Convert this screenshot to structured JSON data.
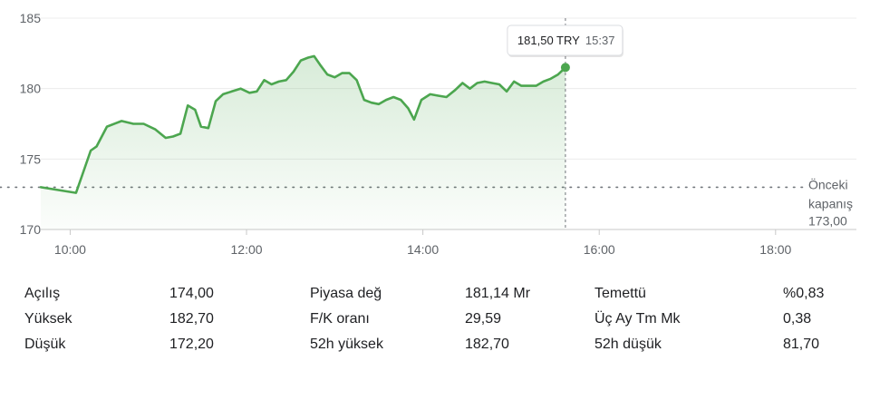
{
  "chart_data": {
    "type": "area",
    "currency": "TRY",
    "tooltip": {
      "price": "181,50 TRY",
      "time": "15:37"
    },
    "previous_close": {
      "label_line1": "Önceki",
      "label_line2": "kapanış",
      "value_label": "173,00",
      "value": 173.0
    },
    "y_ticks": [
      "185",
      "180",
      "175",
      "170"
    ],
    "x_ticks": [
      "10:00",
      "12:00",
      "14:00",
      "16:00",
      "18:00"
    ],
    "ylim": [
      170,
      185
    ],
    "xlim": [
      "09:40",
      "18:55"
    ],
    "line_color": "#4ca64f",
    "series": [
      {
        "x": "09:40",
        "y": 173.0
      },
      {
        "x": "10:04",
        "y": 172.6
      },
      {
        "x": "10:08",
        "y": 173.8
      },
      {
        "x": "10:14",
        "y": 175.6
      },
      {
        "x": "10:18",
        "y": 175.9
      },
      {
        "x": "10:25",
        "y": 177.3
      },
      {
        "x": "10:35",
        "y": 177.7
      },
      {
        "x": "10:43",
        "y": 177.5
      },
      {
        "x": "10:50",
        "y": 177.5
      },
      {
        "x": "10:58",
        "y": 177.1
      },
      {
        "x": "11:05",
        "y": 176.5
      },
      {
        "x": "11:10",
        "y": 176.6
      },
      {
        "x": "11:15",
        "y": 176.8
      },
      {
        "x": "11:20",
        "y": 178.8
      },
      {
        "x": "11:25",
        "y": 178.5
      },
      {
        "x": "11:29",
        "y": 177.3
      },
      {
        "x": "11:34",
        "y": 177.2
      },
      {
        "x": "11:39",
        "y": 179.1
      },
      {
        "x": "11:44",
        "y": 179.6
      },
      {
        "x": "11:50",
        "y": 179.8
      },
      {
        "x": "11:56",
        "y": 180.0
      },
      {
        "x": "12:02",
        "y": 179.7
      },
      {
        "x": "12:07",
        "y": 179.8
      },
      {
        "x": "12:12",
        "y": 180.6
      },
      {
        "x": "12:17",
        "y": 180.3
      },
      {
        "x": "12:22",
        "y": 180.5
      },
      {
        "x": "12:27",
        "y": 180.6
      },
      {
        "x": "12:32",
        "y": 181.2
      },
      {
        "x": "12:37",
        "y": 182.0
      },
      {
        "x": "12:42",
        "y": 182.2
      },
      {
        "x": "12:46",
        "y": 182.3
      },
      {
        "x": "12:50",
        "y": 181.7
      },
      {
        "x": "12:55",
        "y": 181.0
      },
      {
        "x": "13:00",
        "y": 180.8
      },
      {
        "x": "13:05",
        "y": 181.1
      },
      {
        "x": "13:10",
        "y": 181.1
      },
      {
        "x": "13:15",
        "y": 180.6
      },
      {
        "x": "13:20",
        "y": 179.2
      },
      {
        "x": "13:25",
        "y": 179.0
      },
      {
        "x": "13:30",
        "y": 178.9
      },
      {
        "x": "13:35",
        "y": 179.2
      },
      {
        "x": "13:40",
        "y": 179.4
      },
      {
        "x": "13:45",
        "y": 179.2
      },
      {
        "x": "13:50",
        "y": 178.6
      },
      {
        "x": "13:54",
        "y": 177.8
      },
      {
        "x": "13:59",
        "y": 179.2
      },
      {
        "x": "14:05",
        "y": 179.6
      },
      {
        "x": "14:10",
        "y": 179.5
      },
      {
        "x": "14:16",
        "y": 179.4
      },
      {
        "x": "14:22",
        "y": 179.9
      },
      {
        "x": "14:27",
        "y": 180.4
      },
      {
        "x": "14:32",
        "y": 180.0
      },
      {
        "x": "14:37",
        "y": 180.4
      },
      {
        "x": "14:42",
        "y": 180.5
      },
      {
        "x": "14:47",
        "y": 180.4
      },
      {
        "x": "14:52",
        "y": 180.3
      },
      {
        "x": "14:57",
        "y": 179.8
      },
      {
        "x": "15:02",
        "y": 180.5
      },
      {
        "x": "15:07",
        "y": 180.2
      },
      {
        "x": "15:12",
        "y": 180.2
      },
      {
        "x": "15:17",
        "y": 180.2
      },
      {
        "x": "15:22",
        "y": 180.5
      },
      {
        "x": "15:27",
        "y": 180.7
      },
      {
        "x": "15:32",
        "y": 181.0
      },
      {
        "x": "15:37",
        "y": 181.5
      }
    ]
  },
  "stats": [
    [
      {
        "label": "Açılış",
        "value": "174,00"
      },
      {
        "label": "Piyasa değ",
        "value": "181,14 Mr"
      },
      {
        "label": "Temettü",
        "value": "%0,83"
      }
    ],
    [
      {
        "label": "Yüksek",
        "value": "182,70"
      },
      {
        "label": "F/K oranı",
        "value": "29,59"
      },
      {
        "label": "Üç Ay Tm Mk",
        "value": "0,38"
      }
    ],
    [
      {
        "label": "Düşük",
        "value": "172,20"
      },
      {
        "label": "52h yüksek",
        "value": "182,70"
      },
      {
        "label": "52h düşük",
        "value": "81,70"
      }
    ]
  ]
}
